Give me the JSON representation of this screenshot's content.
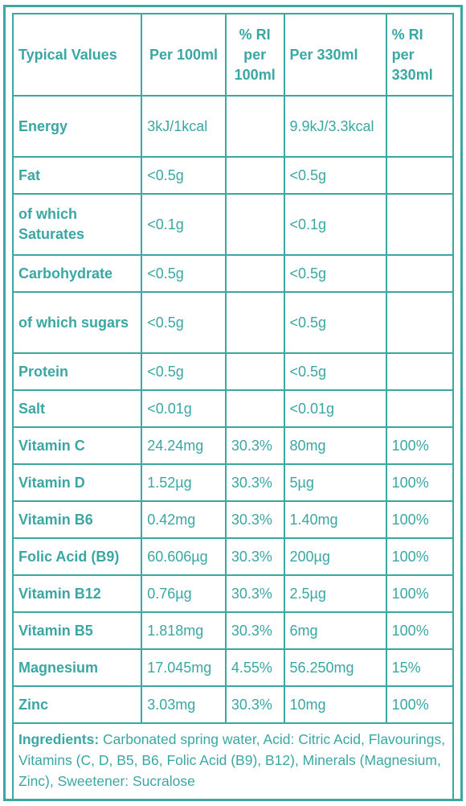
{
  "headers": {
    "typical_values": "Typical Values",
    "per_100ml": "Per 100ml",
    "ri_100ml": "% RI per 100ml",
    "per_330ml": "Per 330ml",
    "ri_330ml": "% RI per 330ml"
  },
  "rows": [
    {
      "label": "Energy",
      "per100": "3kJ/1kcal",
      "ri100": "",
      "per330": "9.9kJ/3.3kcal",
      "ri330": ""
    },
    {
      "label": "Fat",
      "per100": "<0.5g",
      "ri100": "",
      "per330": "<0.5g",
      "ri330": ""
    },
    {
      "label": "of which Saturates",
      "per100": "<0.1g",
      "ri100": "",
      "per330": "<0.1g",
      "ri330": ""
    },
    {
      "label": "Carbohydrate",
      "per100": "<0.5g",
      "ri100": "",
      "per330": "<0.5g",
      "ri330": ""
    },
    {
      "label": "of which sugars",
      "per100": "<0.5g",
      "ri100": "",
      "per330": "<0.5g",
      "ri330": ""
    },
    {
      "label": "Protein",
      "per100": "<0.5g",
      "ri100": "",
      "per330": "<0.5g",
      "ri330": ""
    },
    {
      "label": "Salt",
      "per100": "<0.01g",
      "ri100": "",
      "per330": "<0.01g",
      "ri330": ""
    },
    {
      "label": "Vitamin C",
      "per100": "24.24mg",
      "ri100": "30.3%",
      "per330": "80mg",
      "ri330": "100%"
    },
    {
      "label": "Vitamin D",
      "per100": "1.52µg",
      "ri100": "30.3%",
      "per330": "5µg",
      "ri330": "100%"
    },
    {
      "label": "Vitamin B6",
      "per100": "0.42mg",
      "ri100": "30.3%",
      "per330": "1.40mg",
      "ri330": "100%"
    },
    {
      "label": "Folic Acid (B9)",
      "per100": "60.606µg",
      "ri100": "30.3%",
      "per330": "200µg",
      "ri330": "100%"
    },
    {
      "label": "Vitamin B12",
      "per100": "0.76µg",
      "ri100": "30.3%",
      "per330": "2.5µg",
      "ri330": "100%"
    },
    {
      "label": "Vitamin B5",
      "per100": "1.818mg",
      "ri100": "30.3%",
      "per330": "6mg",
      "ri330": "100%"
    },
    {
      "label": "Magnesium",
      "per100": "17.045mg",
      "ri100": "4.55%",
      "per330": "56.250mg",
      "ri330": "15%"
    },
    {
      "label": "Zinc",
      "per100": "3.03mg",
      "ri100": "30.3%",
      "per330": "10mg",
      "ri330": "100%"
    }
  ],
  "ingredients": {
    "label": "Ingredients:",
    "text": "Carbonated spring water, Acid: Citric Acid, Flavourings, Vitamins (C, D, B5, B6, Folic Acid (B9), B12), Minerals (Magnesium, Zinc), Sweetener: Sucralose"
  },
  "colors": {
    "accent": "#3aa7a3"
  }
}
